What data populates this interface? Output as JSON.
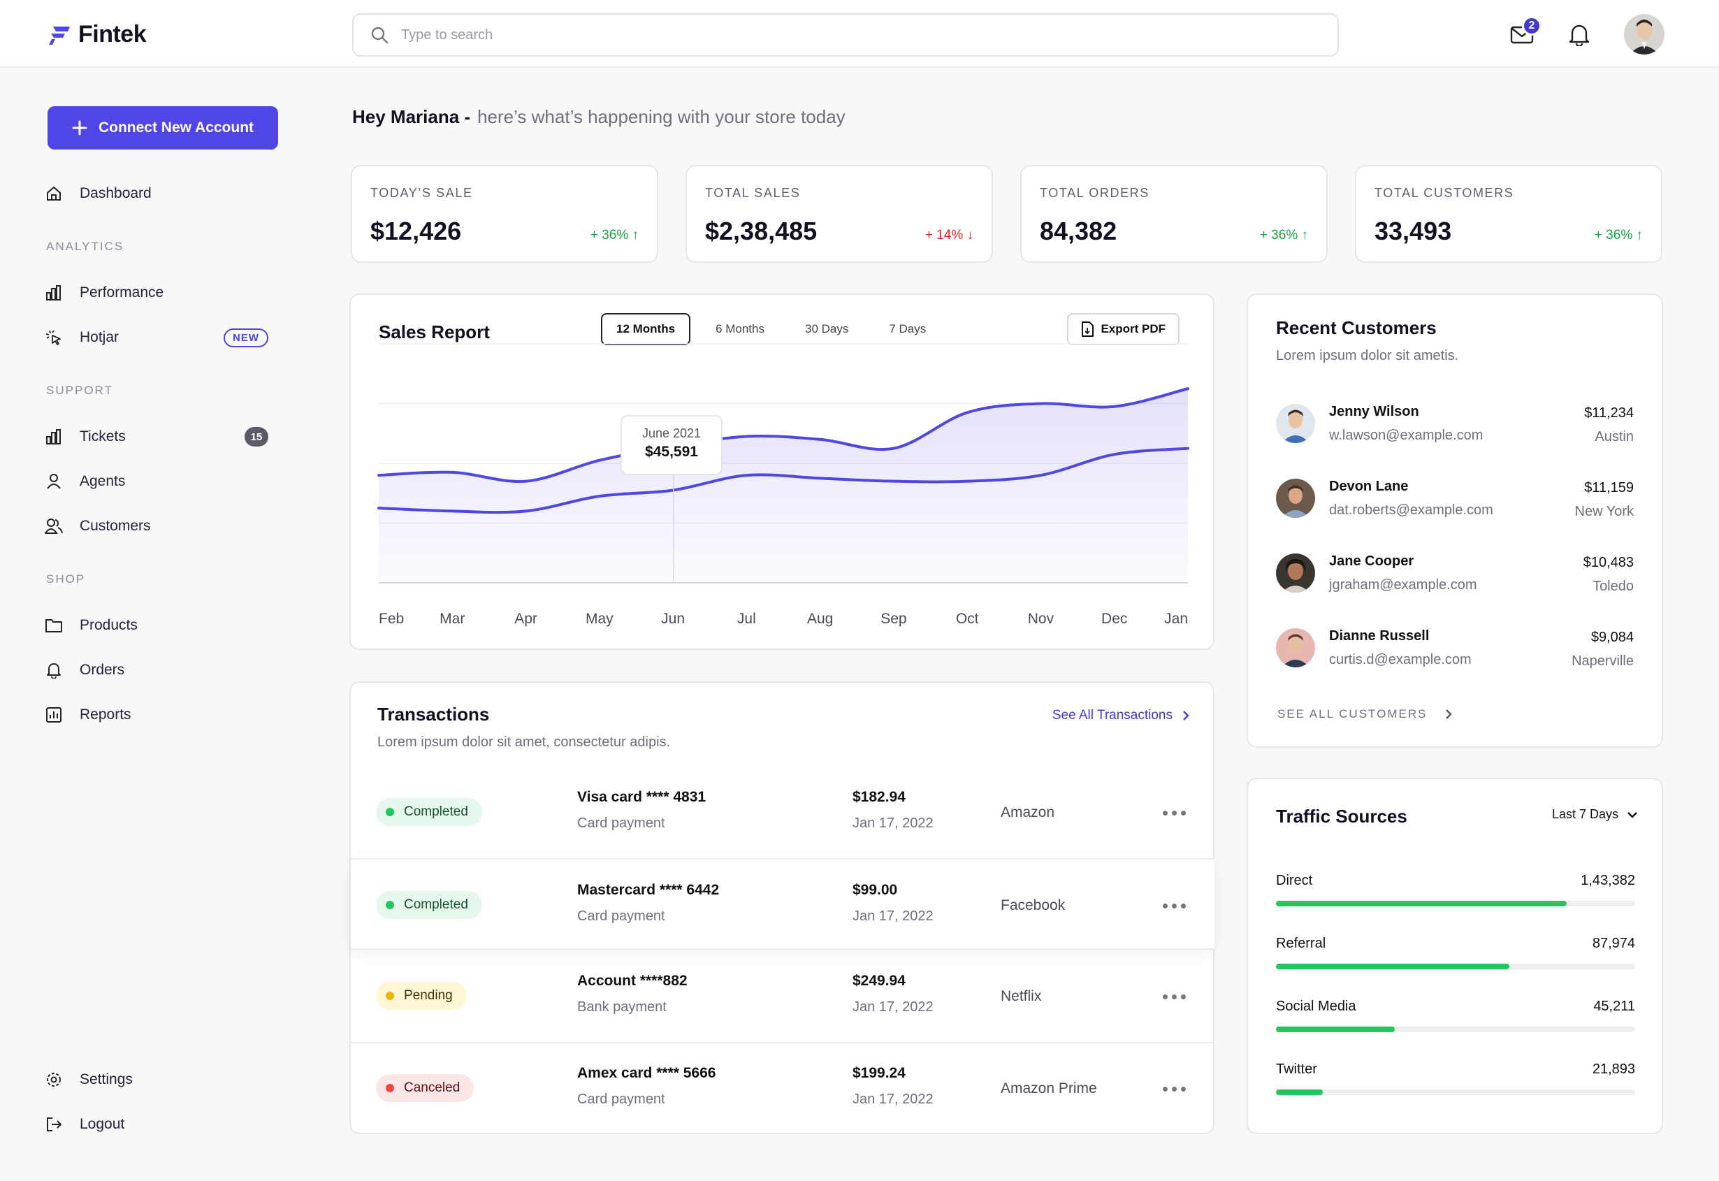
{
  "brand": {
    "name": "Fintek",
    "accent": "#4f46e5"
  },
  "search": {
    "placeholder": "Type to search"
  },
  "header": {
    "mail_badge": "2"
  },
  "sidebar": {
    "connect_label": "Connect New Account",
    "dashboard": "Dashboard",
    "sections": {
      "analytics": "ANALYTICS",
      "support": "SUPPORT",
      "shop": "SHOP"
    },
    "performance": "Performance",
    "hotjar": "Hotjar",
    "hotjar_badge": "NEW",
    "tickets": "Tickets",
    "tickets_count": "15",
    "agents": "Agents",
    "customers": "Customers",
    "products": "Products",
    "orders": "Orders",
    "reports": "Reports",
    "settings": "Settings",
    "logout": "Logout"
  },
  "greeting": {
    "name": "Hey Mariana -",
    "sub": "here’s what’s happening with your store today"
  },
  "kpis": [
    {
      "label": "TODAY’S SALE",
      "value": "$12,426",
      "delta": "+ 36%",
      "trend": "up"
    },
    {
      "label": "TOTAL SALES",
      "value": "$2,38,485",
      "delta": "+ 14%",
      "trend": "down"
    },
    {
      "label": "TOTAL ORDERS",
      "value": "84,382",
      "delta": "+ 36%",
      "trend": "up"
    },
    {
      "label": "TOTAL CUSTOMERS",
      "value": "33,493",
      "delta": "+ 36%",
      "trend": "up"
    }
  ],
  "sales_report": {
    "title": "Sales Report",
    "tabs": [
      "12 Months",
      "6 Months",
      "30 Days",
      "7 Days"
    ],
    "active_tab": "12 Months",
    "export_label": "Export PDF",
    "tooltip": {
      "label": "June 2021",
      "value": "$45,591"
    }
  },
  "chart_data": {
    "type": "area",
    "categories": [
      "Feb",
      "Mar",
      "Apr",
      "May",
      "Jun",
      "Jul",
      "Aug",
      "Sep",
      "Oct",
      "Nov",
      "Dec",
      "Jan"
    ],
    "series": [
      {
        "values": [
          36,
          37,
          34,
          41,
          45.6,
          49,
          48,
          45,
          57,
          60,
          59,
          65
        ]
      },
      {
        "values": [
          25,
          24,
          24,
          29,
          31,
          36,
          35,
          34,
          34,
          36,
          43,
          45
        ]
      }
    ],
    "ylim": [
      0,
      80
    ],
    "grid": true,
    "colors": [
      "#4f46e5",
      "#4f46e5"
    ]
  },
  "transactions": {
    "title": "Transactions",
    "subtitle": "Lorem ipsum dolor sit amet, consectetur adipis.",
    "see_all": "See All Transactions",
    "rows": [
      {
        "status": "Completed",
        "kind": "completed",
        "method": "Visa card  **** 4831",
        "type": "Card payment",
        "amount": "$182.94",
        "date": "Jan 17, 2022",
        "merchant": "Amazon"
      },
      {
        "status": "Completed",
        "kind": "completed",
        "method": "Mastercard  **** 6442",
        "type": "Card payment",
        "amount": "$99.00",
        "date": "Jan 17, 2022",
        "merchant": "Facebook"
      },
      {
        "status": "Pending",
        "kind": "pending",
        "method": "Account  ****882",
        "type": "Bank payment",
        "amount": "$249.94",
        "date": "Jan 17, 2022",
        "merchant": "Netflix"
      },
      {
        "status": "Canceled",
        "kind": "canceled",
        "method": "Amex card  **** 5666",
        "type": "Card payment",
        "amount": "$199.24",
        "date": "Jan 17, 2022",
        "merchant": "Amazon Prime"
      }
    ]
  },
  "recent_customers": {
    "title": "Recent Customers",
    "subtitle": "Lorem ipsum dolor sit ametis.",
    "see_all": "SEE ALL CUSTOMERS",
    "rows": [
      {
        "name": "Jenny Wilson",
        "email": "w.lawson@example.com",
        "amount": "$11,234",
        "city": "Austin"
      },
      {
        "name": "Devon Lane",
        "email": "dat.roberts@example.com",
        "amount": "$11,159",
        "city": "New York"
      },
      {
        "name": "Jane Cooper",
        "email": "jgraham@example.com",
        "amount": "$10,483",
        "city": "Toledo"
      },
      {
        "name": "Dianne Russell",
        "email": "curtis.d@example.com",
        "amount": "$9,084",
        "city": "Naperville"
      }
    ]
  },
  "traffic": {
    "title": "Traffic Sources",
    "range": "Last 7 Days",
    "rows": [
      {
        "name": "Direct",
        "value": "1,43,382",
        "fill": 0.81
      },
      {
        "name": "Referral",
        "value": "87,974",
        "fill": 0.65
      },
      {
        "name": "Social Media",
        "value": "45,211",
        "fill": 0.33
      },
      {
        "name": "Twitter",
        "value": "21,893",
        "fill": 0.13
      }
    ]
  }
}
